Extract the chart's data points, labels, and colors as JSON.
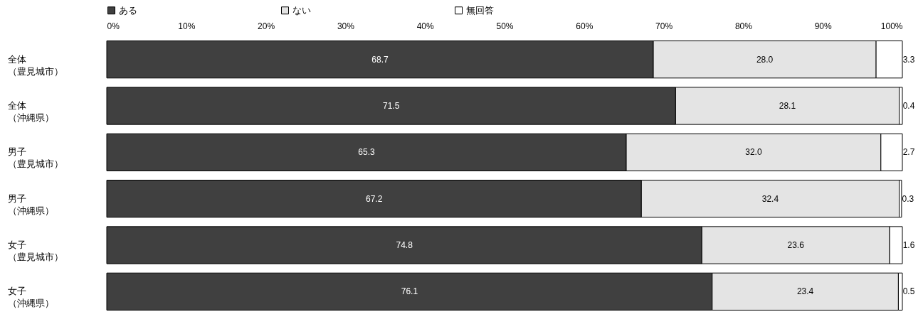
{
  "chart_data": {
    "type": "bar",
    "orientation": "horizontal",
    "stacked": true,
    "legend": "top",
    "grid": false,
    "categories": [
      "全体（豊見城市）",
      "全体（沖縄県）",
      "男子（豊見城市）",
      "男子（沖縄県）",
      "女子（豊見城市）",
      "女子（沖縄県）"
    ],
    "xlim": [
      0,
      100
    ],
    "xticks": [
      {
        "value": 0,
        "label": "0%"
      },
      {
        "value": 10,
        "label": "10%"
      },
      {
        "value": 20,
        "label": "20%"
      },
      {
        "value": 30,
        "label": "30%"
      },
      {
        "value": 40,
        "label": "40%"
      },
      {
        "value": 50,
        "label": "50%"
      },
      {
        "value": 60,
        "label": "60%"
      },
      {
        "value": 70,
        "label": "70%"
      },
      {
        "value": 80,
        "label": "80%"
      },
      {
        "value": 90,
        "label": "90%"
      },
      {
        "value": 100,
        "label": "100%"
      }
    ],
    "series": [
      {
        "name": "ある",
        "color": "#404040",
        "values": [
          68.7,
          71.5,
          65.3,
          67.2,
          74.8,
          76.1
        ],
        "value_labels": [
          "68.7",
          "71.5",
          "65.3",
          "67.2",
          "74.8",
          "76.1"
        ]
      },
      {
        "name": "ない",
        "color": "#e4e4e4",
        "values": [
          28.0,
          28.1,
          32.0,
          32.4,
          23.6,
          23.4
        ],
        "value_labels": [
          "28.0",
          "28.1",
          "32.0",
          "32.4",
          "23.6",
          "23.4"
        ]
      },
      {
        "name": "無回答",
        "color": "#ffffff",
        "values": [
          3.3,
          0.4,
          2.7,
          0.3,
          1.6,
          0.5
        ],
        "value_labels": [
          "3.3",
          "0.4",
          "2.7",
          "0.3",
          "1.6",
          "0.5"
        ]
      }
    ]
  }
}
